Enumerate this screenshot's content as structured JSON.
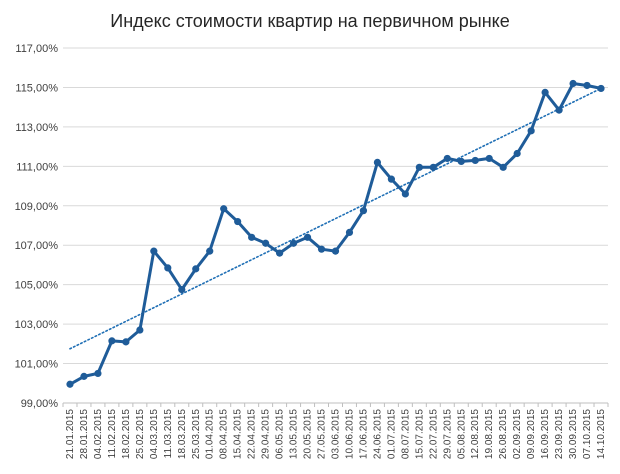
{
  "chart_data": {
    "type": "line",
    "title": "Индекс стоимости квартир на первичном рынке",
    "xlabel": "",
    "ylabel": "",
    "ylim": [
      99,
      117
    ],
    "y_ticks": [
      "99,00%",
      "101,00%",
      "103,00%",
      "105,00%",
      "107,00%",
      "109,00%",
      "111,00%",
      "113,00%",
      "115,00%",
      "117,00%"
    ],
    "grid": "horizontal",
    "legend": "none",
    "categories": [
      "21.01.2015",
      "28.01.2015",
      "04.02.2015",
      "11.02.2015",
      "18.02.2015",
      "25.02.2015",
      "04.03.2015",
      "11.03.2015",
      "18.03.2015",
      "25.03.2015",
      "01.04.2015",
      "08.04.2015",
      "15.04.2015",
      "22.04.2015",
      "29.04.2015",
      "06.05.2015",
      "13.05.2015",
      "20.05.2015",
      "27.05.2015",
      "03.06.2015",
      "10.06.2015",
      "17.06.2015",
      "24.06.2015",
      "01.07.2015",
      "08.07.2015",
      "15.07.2015",
      "22.07.2015",
      "29.07.2015",
      "05.08.2015",
      "12.08.2015",
      "19.08.2015",
      "26.08.2015",
      "02.09.2015",
      "09.09.2015",
      "16.09.2015",
      "23.09.2015",
      "30.09.2015",
      "07.10.2015",
      "14.10.2015"
    ],
    "series": [
      {
        "values": [
          99.95,
          100.35,
          100.5,
          102.15,
          102.1,
          102.7,
          106.7,
          105.85,
          104.75,
          105.8,
          106.7,
          108.85,
          108.2,
          107.4,
          107.1,
          106.6,
          107.1,
          107.4,
          106.8,
          106.7,
          107.65,
          108.75,
          111.2,
          110.35,
          109.6,
          110.95,
          110.95,
          111.4,
          111.25,
          111.3,
          111.4,
          110.95,
          111.65,
          112.8,
          114.75,
          113.85,
          115.2,
          115.1,
          114.95
        ],
        "color": "#1f5c99"
      }
    ],
    "trendline": {
      "style": "dotted",
      "color": "#1f6fb5",
      "start": 101.75,
      "end": 114.95
    }
  }
}
